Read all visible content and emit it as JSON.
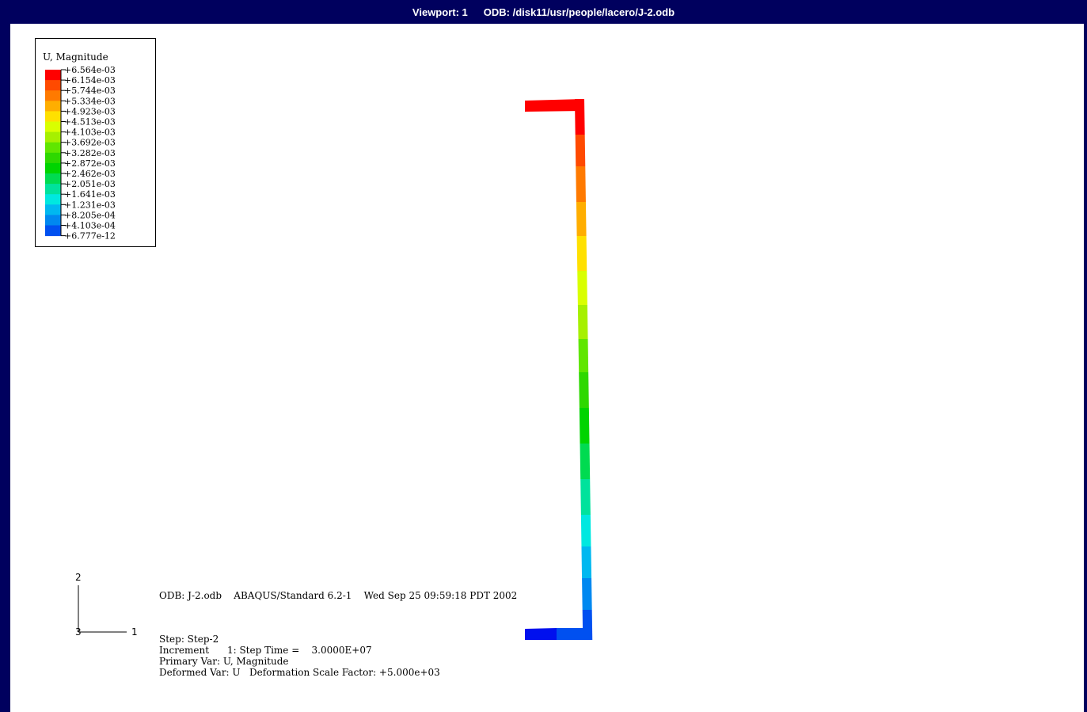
{
  "titlebar": {
    "viewport": "Viewport: 1",
    "odb": "ODB: /disk11/usr/people/lacero/J-2.odb"
  },
  "legend": {
    "title": "U, Magnitude",
    "labels": [
      "+6.564e-03",
      "+6.154e-03",
      "+5.744e-03",
      "+5.334e-03",
      "+4.923e-03",
      "+4.513e-03",
      "+4.103e-03",
      "+3.692e-03",
      "+3.282e-03",
      "+2.872e-03",
      "+2.462e-03",
      "+2.051e-03",
      "+1.641e-03",
      "+1.231e-03",
      "+8.205e-04",
      "+4.103e-04",
      "+6.777e-12"
    ],
    "colors": [
      "#ff0000",
      "#ff4a00",
      "#ff7a00",
      "#ffae00",
      "#ffe000",
      "#d9ff00",
      "#a6f000",
      "#60e600",
      "#2ed800",
      "#00d400",
      "#00db50",
      "#00e29c",
      "#00e8e0",
      "#00b8f0",
      "#0088f0",
      "#0050f0",
      "#0010ee"
    ]
  },
  "info": {
    "odb_line": "ODB: J-2.odb    ABAQUS/Standard 6.2-1    Wed Sep 25 09:59:18 PDT 2002",
    "step": "Step: Step-2",
    "increment": "Increment      1: Step Time =    3.0000E+07",
    "primary": "Primary Var: U, Magnitude",
    "deformed": "Deformed Var: U   Deformation Scale Factor: +5.000e+03"
  },
  "triad": {
    "axis2": "2",
    "axis1": "1",
    "axis3": "3"
  },
  "colors": {
    "frame": "#00005e",
    "background": "#ffffff"
  }
}
